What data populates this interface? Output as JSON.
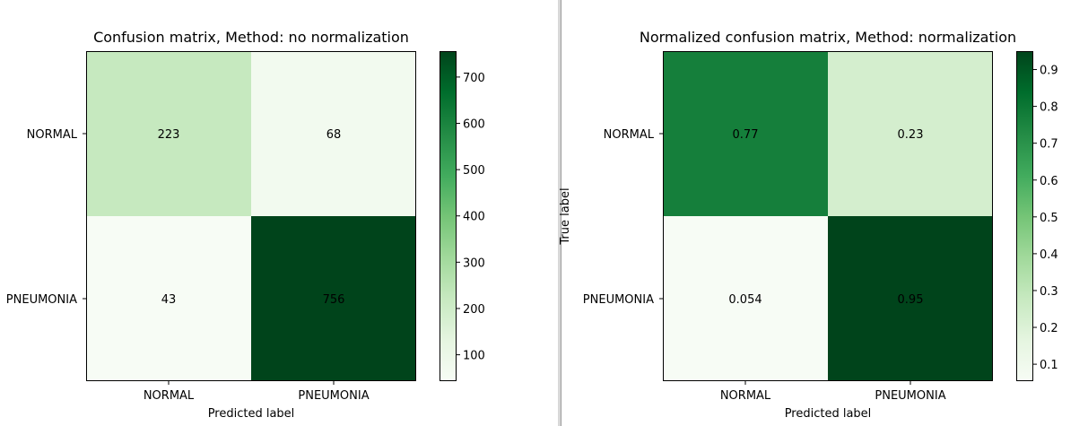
{
  "chart_data": [
    {
      "type": "heatmap",
      "title": "Confusion matrix, Method: no normalization",
      "xlabel": "Predicted label",
      "ylabel": "",
      "x_categories": [
        "NORMAL",
        "PNEUMONIA"
      ],
      "y_categories": [
        "NORMAL",
        "PNEUMONIA"
      ],
      "values": [
        [
          223,
          68
        ],
        [
          43,
          756
        ]
      ],
      "cell_labels": [
        [
          "223",
          "68"
        ],
        [
          "43",
          "756"
        ]
      ],
      "vmin": 43,
      "vmax": 756,
      "colorbar_ticks": [
        100,
        200,
        300,
        400,
        500,
        600,
        700
      ],
      "colorbar_tick_labels": [
        "100",
        "200",
        "300",
        "400",
        "500",
        "600",
        "700"
      ],
      "colormap": "Greens"
    },
    {
      "type": "heatmap",
      "title": "Normalized confusion matrix, Method: normalization",
      "xlabel": "Predicted label",
      "ylabel": "True label",
      "x_categories": [
        "NORMAL",
        "PNEUMONIA"
      ],
      "y_categories": [
        "NORMAL",
        "PNEUMONIA"
      ],
      "values": [
        [
          0.77,
          0.23
        ],
        [
          0.054,
          0.95
        ]
      ],
      "cell_labels": [
        [
          "0.77",
          "0.23"
        ],
        [
          "0.054",
          "0.95"
        ]
      ],
      "vmin": 0.054,
      "vmax": 0.95,
      "colorbar_ticks": [
        0.1,
        0.2,
        0.3,
        0.4,
        0.5,
        0.6,
        0.7,
        0.8,
        0.9
      ],
      "colorbar_tick_labels": [
        "0.1",
        "0.2",
        "0.3",
        "0.4",
        "0.5",
        "0.6",
        "0.7",
        "0.8",
        "0.9"
      ],
      "colormap": "Greens"
    }
  ]
}
